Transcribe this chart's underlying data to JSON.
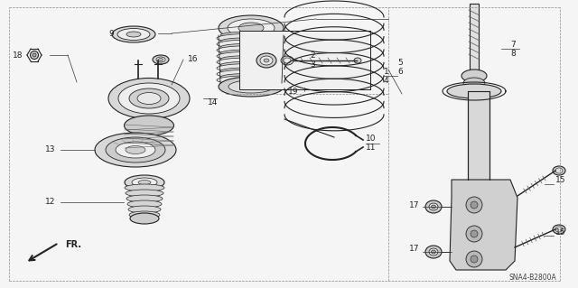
{
  "bg_color": "#f5f5f5",
  "diagram_code": "SNA4-B2800A",
  "line_color": "#222222",
  "fill_light": "#e8e8e8",
  "fill_mid": "#cccccc",
  "fill_dark": "#aaaaaa",
  "label_fs": 6.5,
  "border_lw": 0.7,
  "parts_line_lw": 0.8
}
